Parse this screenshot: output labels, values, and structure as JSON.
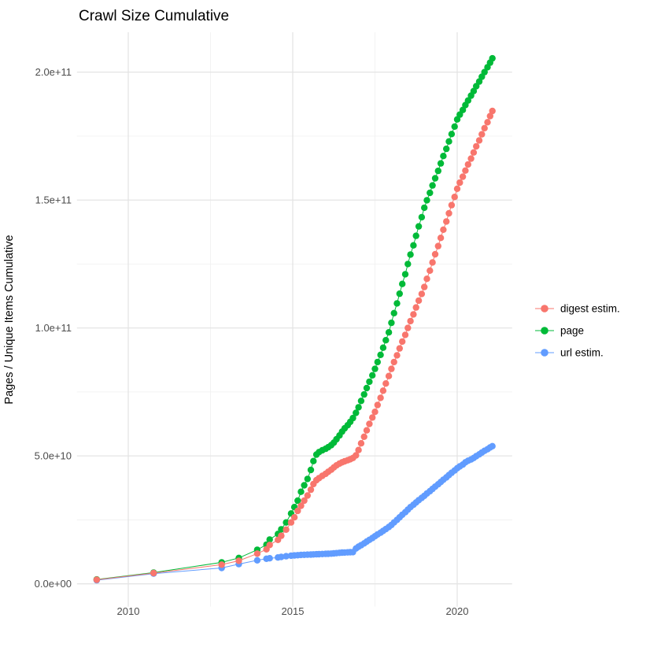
{
  "chart_data": {
    "type": "line",
    "title": "Crawl Size Cumulative",
    "xlabel": "",
    "ylabel": "Pages / Unique Items Cumulative",
    "value_scale": 1000000000.0,
    "value_unit": "pages / unique items (values below are in billions, 1e9)",
    "x_axis": {
      "range": [
        2008.44,
        2021.67
      ],
      "major_ticks": [
        2010,
        2015,
        2020
      ],
      "major_tick_labels": [
        "2010",
        "2015",
        "2020"
      ],
      "minor_ticks": [
        2012.5,
        2017.5
      ]
    },
    "y_axis": {
      "range": [
        -8.9,
        215.6
      ],
      "major_ticks": [
        0,
        50,
        100,
        150,
        200
      ],
      "major_tick_labels": [
        "0.0e+00",
        "5.0e+10",
        "1.0e+11",
        "1.5e+11",
        "2.0e+11"
      ],
      "minor_ticks": [
        25,
        75,
        125,
        175
      ]
    },
    "grid": {
      "major_color": "#e4e4e4",
      "minor_color": "#f0f0f0",
      "background": "#ffffff"
    },
    "legend_position": "right",
    "series": [
      {
        "name": "digest estim.",
        "color": "#F8766D",
        "points": [
          [
            2009.04,
            1.6
          ],
          [
            2010.77,
            4.2
          ],
          [
            2012.84,
            7.5
          ],
          [
            2013.36,
            9.0
          ],
          [
            2013.92,
            11.8
          ],
          [
            2014.2,
            13.5
          ],
          [
            2014.3,
            15.2
          ],
          [
            2014.55,
            17.2
          ],
          [
            2014.65,
            18.8
          ],
          [
            2014.8,
            21.2
          ],
          [
            2014.95,
            24
          ],
          [
            2015.05,
            26
          ],
          [
            2015.15,
            28.5
          ],
          [
            2015.25,
            30.5
          ],
          [
            2015.35,
            32.5
          ],
          [
            2015.45,
            34.5
          ],
          [
            2015.55,
            36.8
          ],
          [
            2015.63,
            39
          ],
          [
            2015.72,
            40.5
          ],
          [
            2015.8,
            41.3
          ],
          [
            2015.9,
            42.2
          ],
          [
            2016.0,
            43
          ],
          [
            2016.08,
            43.8
          ],
          [
            2016.17,
            44.6
          ],
          [
            2016.25,
            45.5
          ],
          [
            2016.33,
            46.3
          ],
          [
            2016.42,
            47
          ],
          [
            2016.5,
            47.5
          ],
          [
            2016.58,
            47.9
          ],
          [
            2016.67,
            48.3
          ],
          [
            2016.75,
            48.7
          ],
          [
            2016.83,
            49.2
          ],
          [
            2016.92,
            50.2
          ],
          [
            2017.0,
            52.3
          ],
          [
            2017.08,
            54.9
          ],
          [
            2017.17,
            57.5
          ],
          [
            2017.25,
            60
          ],
          [
            2017.33,
            62.5
          ],
          [
            2017.42,
            65
          ],
          [
            2017.5,
            67.2
          ],
          [
            2017.58,
            69.9
          ],
          [
            2017.67,
            72.7
          ],
          [
            2017.75,
            75.5
          ],
          [
            2017.83,
            78.3
          ],
          [
            2017.92,
            81.2
          ],
          [
            2018.0,
            84
          ],
          [
            2018.08,
            86.7
          ],
          [
            2018.17,
            89.3
          ],
          [
            2018.25,
            92
          ],
          [
            2018.33,
            94.7
          ],
          [
            2018.42,
            97.3
          ],
          [
            2018.5,
            100
          ],
          [
            2018.58,
            102.7
          ],
          [
            2018.67,
            105.3
          ],
          [
            2018.75,
            108
          ],
          [
            2018.83,
            110.7
          ],
          [
            2018.92,
            113.3
          ],
          [
            2019.0,
            116
          ],
          [
            2019.08,
            119.2
          ],
          [
            2019.17,
            122.4
          ],
          [
            2019.25,
            125.6
          ],
          [
            2019.33,
            128.8
          ],
          [
            2019.42,
            132
          ],
          [
            2019.5,
            135.2
          ],
          [
            2019.58,
            138.4
          ],
          [
            2019.67,
            141.6
          ],
          [
            2019.75,
            144.8
          ],
          [
            2019.83,
            148
          ],
          [
            2019.92,
            151.2
          ],
          [
            2020.0,
            154.4
          ],
          [
            2020.08,
            156.8
          ],
          [
            2020.17,
            159.1
          ],
          [
            2020.25,
            161.5
          ],
          [
            2020.33,
            163.9
          ],
          [
            2020.42,
            166.2
          ],
          [
            2020.5,
            168.6
          ],
          [
            2020.58,
            171
          ],
          [
            2020.67,
            173.3
          ],
          [
            2020.75,
            175.7
          ],
          [
            2020.83,
            178.1
          ],
          [
            2020.92,
            180.4
          ],
          [
            2021.0,
            182.8
          ],
          [
            2021.07,
            184.8
          ]
        ]
      },
      {
        "name": "page",
        "color": "#00BA38",
        "points": [
          [
            2009.04,
            1.7
          ],
          [
            2010.77,
            4.4
          ],
          [
            2012.84,
            8.4
          ],
          [
            2013.36,
            10.1
          ],
          [
            2013.92,
            13.3
          ],
          [
            2014.2,
            15.3
          ],
          [
            2014.3,
            17.3
          ],
          [
            2014.55,
            19.5
          ],
          [
            2014.65,
            21.3
          ],
          [
            2014.8,
            24
          ],
          [
            2014.95,
            27.5
          ],
          [
            2015.05,
            30
          ],
          [
            2015.15,
            32.5
          ],
          [
            2015.25,
            36
          ],
          [
            2015.35,
            38.5
          ],
          [
            2015.45,
            41
          ],
          [
            2015.55,
            44.5
          ],
          [
            2015.63,
            48
          ],
          [
            2015.72,
            50.5
          ],
          [
            2015.8,
            51.5
          ],
          [
            2015.9,
            52.2
          ],
          [
            2016.0,
            52.8
          ],
          [
            2016.08,
            53.4
          ],
          [
            2016.17,
            54.2
          ],
          [
            2016.25,
            55.2
          ],
          [
            2016.33,
            56.5
          ],
          [
            2016.42,
            58
          ],
          [
            2016.5,
            59.5
          ],
          [
            2016.58,
            60.8
          ],
          [
            2016.67,
            62
          ],
          [
            2016.75,
            63.3
          ],
          [
            2016.83,
            64.8
          ],
          [
            2016.92,
            66.8
          ],
          [
            2017.0,
            69
          ],
          [
            2017.08,
            71.5
          ],
          [
            2017.17,
            74
          ],
          [
            2017.25,
            76.5
          ],
          [
            2017.33,
            79
          ],
          [
            2017.42,
            81.5
          ],
          [
            2017.5,
            84
          ],
          [
            2017.58,
            86.7
          ],
          [
            2017.67,
            89.5
          ],
          [
            2017.75,
            92.3
          ],
          [
            2017.83,
            95.2
          ],
          [
            2017.92,
            98.3
          ],
          [
            2018.0,
            102
          ],
          [
            2018.08,
            105.8
          ],
          [
            2018.17,
            109.6
          ],
          [
            2018.25,
            113.4
          ],
          [
            2018.33,
            117.2
          ],
          [
            2018.42,
            121
          ],
          [
            2018.5,
            125
          ],
          [
            2018.58,
            128.7
          ],
          [
            2018.67,
            132.3
          ],
          [
            2018.75,
            136
          ],
          [
            2018.83,
            139.7
          ],
          [
            2018.92,
            143.3
          ],
          [
            2019.0,
            147
          ],
          [
            2019.08,
            149.9
          ],
          [
            2019.17,
            152.8
          ],
          [
            2019.25,
            155.7
          ],
          [
            2019.33,
            158.5
          ],
          [
            2019.42,
            161.4
          ],
          [
            2019.5,
            164.3
          ],
          [
            2019.58,
            167.2
          ],
          [
            2019.67,
            170
          ],
          [
            2019.75,
            172.9
          ],
          [
            2019.83,
            175.8
          ],
          [
            2019.92,
            178.7
          ],
          [
            2020.0,
            181.5
          ],
          [
            2020.08,
            183.4
          ],
          [
            2020.17,
            185.2
          ],
          [
            2020.25,
            187.1
          ],
          [
            2020.33,
            188.9
          ],
          [
            2020.42,
            190.8
          ],
          [
            2020.5,
            192.6
          ],
          [
            2020.58,
            194.5
          ],
          [
            2020.67,
            196.3
          ],
          [
            2020.75,
            198.2
          ],
          [
            2020.83,
            200
          ],
          [
            2020.92,
            201.9
          ],
          [
            2021.0,
            203.7
          ],
          [
            2021.07,
            205.4
          ]
        ]
      },
      {
        "name": "url estim.",
        "color": "#619CFF",
        "points": [
          [
            2009.04,
            1.4
          ],
          [
            2010.77,
            4.0
          ],
          [
            2012.84,
            6.2
          ],
          [
            2013.36,
            7.7
          ],
          [
            2013.92,
            9.2
          ],
          [
            2014.2,
            9.8
          ],
          [
            2014.3,
            10.0
          ],
          [
            2014.55,
            10.3
          ],
          [
            2014.65,
            10.5
          ],
          [
            2014.8,
            10.8
          ],
          [
            2014.95,
            11.0
          ],
          [
            2015.05,
            11.1
          ],
          [
            2015.15,
            11.2
          ],
          [
            2015.25,
            11.3
          ],
          [
            2015.35,
            11.35
          ],
          [
            2015.45,
            11.4
          ],
          [
            2015.55,
            11.45
          ],
          [
            2015.63,
            11.5
          ],
          [
            2015.72,
            11.55
          ],
          [
            2015.8,
            11.6
          ],
          [
            2015.9,
            11.65
          ],
          [
            2016.0,
            11.7
          ],
          [
            2016.08,
            11.75
          ],
          [
            2016.17,
            11.8
          ],
          [
            2016.25,
            11.9
          ],
          [
            2016.33,
            12.0
          ],
          [
            2016.42,
            12.1
          ],
          [
            2016.5,
            12.2
          ],
          [
            2016.58,
            12.25
          ],
          [
            2016.67,
            12.3
          ],
          [
            2016.75,
            12.35
          ],
          [
            2016.83,
            12.4
          ],
          [
            2016.92,
            13.8
          ],
          [
            2017.0,
            14.5
          ],
          [
            2017.08,
            15.1
          ],
          [
            2017.17,
            15.8
          ],
          [
            2017.25,
            16.5
          ],
          [
            2017.33,
            17.2
          ],
          [
            2017.42,
            17.9
          ],
          [
            2017.5,
            18.6
          ],
          [
            2017.58,
            19.3
          ],
          [
            2017.67,
            20.0
          ],
          [
            2017.75,
            20.7
          ],
          [
            2017.83,
            21.4
          ],
          [
            2017.92,
            22.2
          ],
          [
            2018.0,
            23
          ],
          [
            2018.08,
            24
          ],
          [
            2018.17,
            25
          ],
          [
            2018.25,
            26
          ],
          [
            2018.33,
            27
          ],
          [
            2018.42,
            28
          ],
          [
            2018.5,
            29
          ],
          [
            2018.58,
            30
          ],
          [
            2018.67,
            30.9
          ],
          [
            2018.75,
            31.8
          ],
          [
            2018.83,
            32.7
          ],
          [
            2018.92,
            33.6
          ],
          [
            2019.0,
            34.4
          ],
          [
            2019.08,
            35.3
          ],
          [
            2019.17,
            36.2
          ],
          [
            2019.25,
            37.1
          ],
          [
            2019.33,
            38
          ],
          [
            2019.42,
            38.9
          ],
          [
            2019.5,
            39.8
          ],
          [
            2019.58,
            40.7
          ],
          [
            2019.67,
            41.6
          ],
          [
            2019.75,
            42.5
          ],
          [
            2019.83,
            43.4
          ],
          [
            2019.92,
            44.3
          ],
          [
            2020.0,
            45.2
          ],
          [
            2020.08,
            45.9
          ],
          [
            2020.17,
            46.6
          ],
          [
            2020.25,
            47.5
          ],
          [
            2020.33,
            48.1
          ],
          [
            2020.42,
            48.6
          ],
          [
            2020.5,
            49.2
          ],
          [
            2020.58,
            49.9
          ],
          [
            2020.67,
            50.6
          ],
          [
            2020.75,
            51.3
          ],
          [
            2020.83,
            52
          ],
          [
            2020.92,
            52.6
          ],
          [
            2021.0,
            53.3
          ],
          [
            2021.07,
            53.8
          ]
        ]
      }
    ],
    "legend": [
      {
        "label": "digest estim.",
        "color": "#F8766D"
      },
      {
        "label": "page",
        "color": "#00BA38"
      },
      {
        "label": "url estim.",
        "color": "#619CFF"
      }
    ]
  }
}
